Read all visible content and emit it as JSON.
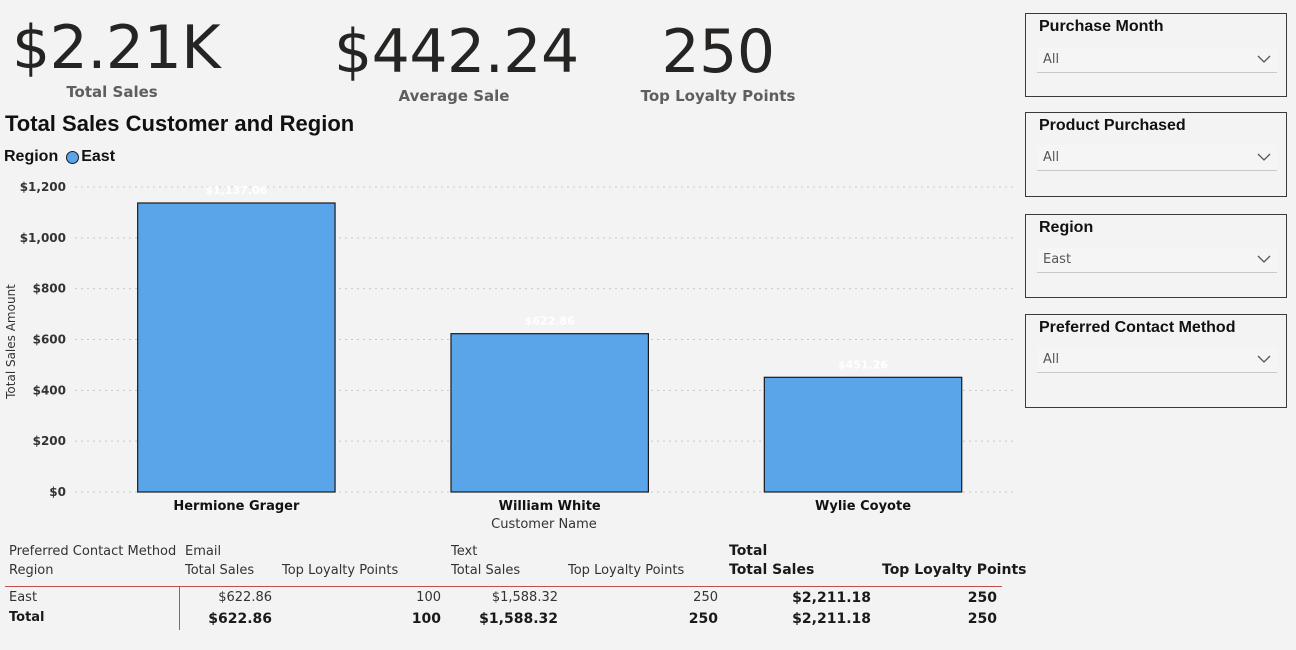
{
  "kpis": {
    "total_sales": {
      "value": "$2.21K",
      "label": "Total Sales"
    },
    "average_sale": {
      "value": "$442.24",
      "label": "Average Sale"
    },
    "top_loyalty": {
      "value": "250",
      "label": "Top Loyalty Points"
    }
  },
  "chart": {
    "title": "Total Sales Customer and Region",
    "legend_title": "Region",
    "legend_item": "East",
    "legend_color": "#5aa5ea"
  },
  "chart_data": {
    "type": "bar",
    "title": "Total Sales Customer and Region",
    "xlabel": "Customer Name",
    "ylabel": "Total Sales Amount",
    "categories": [
      "Hermione Grager",
      "William White",
      "Wylie Coyote"
    ],
    "series": [
      {
        "name": "East",
        "values": [
          1137.06,
          622.86,
          451.26
        ]
      }
    ],
    "data_labels": [
      "$1,137.06",
      "$622.86",
      "$451.26"
    ],
    "ylim": [
      0,
      1200
    ],
    "yticks": [
      0,
      200,
      400,
      600,
      800,
      1000,
      1200
    ],
    "ytick_labels": [
      "$0",
      "$200",
      "$400",
      "$600",
      "$800",
      "$1,000",
      "$1,200"
    ],
    "grid": true,
    "bar_color": "#5aa5ea",
    "legend_position": "top-left"
  },
  "slicers": [
    {
      "title": "Purchase Month",
      "value": "All"
    },
    {
      "title": "Product Purchased",
      "value": "All"
    },
    {
      "title": "Region",
      "value": "East"
    },
    {
      "title": "Preferred Contact Method",
      "value": "All"
    }
  ],
  "matrix": {
    "row_header_1": "Preferred Contact Method",
    "row_header_2": "Region",
    "groups": [
      {
        "name": "Email",
        "col1": "Total Sales",
        "col2": "Top Loyalty Points"
      },
      {
        "name": "Text",
        "col1": "Total Sales",
        "col2": "Top Loyalty Points"
      },
      {
        "name": "Total",
        "col1": "Total Sales",
        "col2": "Top Loyalty Points"
      }
    ],
    "rows": [
      {
        "label": "East",
        "values": [
          "$622.86",
          "100",
          "$1,588.32",
          "250",
          "$2,211.18",
          "250"
        ]
      },
      {
        "label": "Total",
        "values": [
          "$622.86",
          "100",
          "$1,588.32",
          "250",
          "$2,211.18",
          "250"
        ]
      }
    ],
    "separator_color": "#c0504d"
  }
}
